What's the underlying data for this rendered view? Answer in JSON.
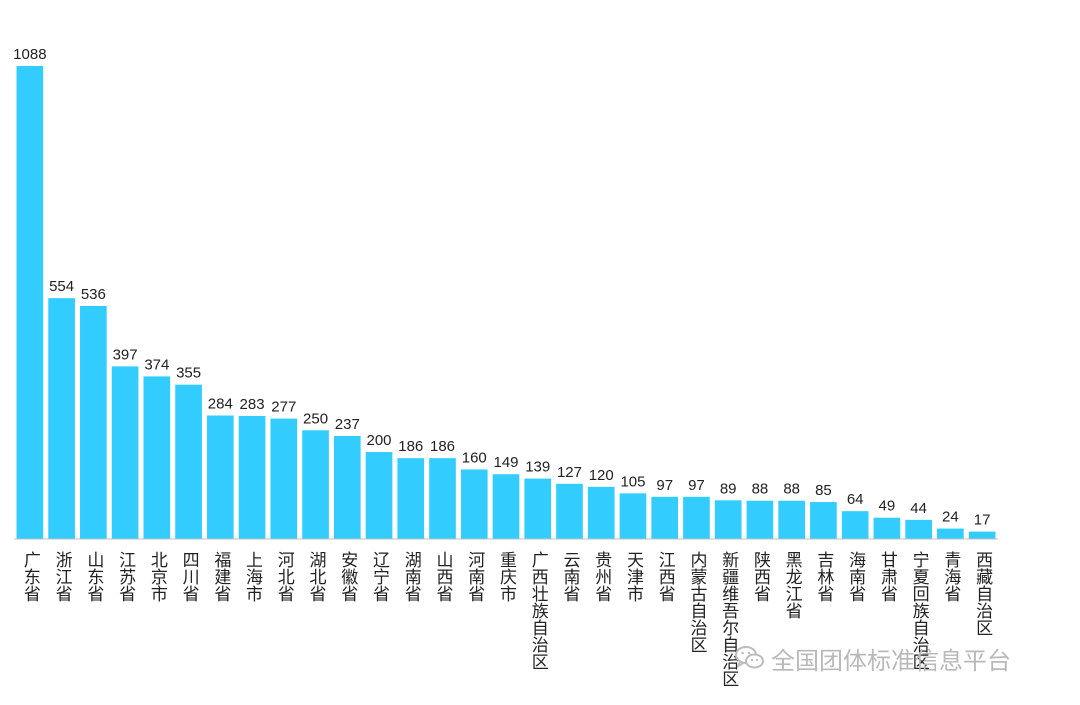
{
  "chart_data": {
    "type": "bar",
    "categories": [
      "广东省",
      "浙江省",
      "山东省",
      "江苏省",
      "北京市",
      "四川省",
      "福建省",
      "上海市",
      "河北省",
      "湖北省",
      "安徽省",
      "辽宁省",
      "湖南省",
      "山西省",
      "河南省",
      "重庆市",
      "广西壮族自治区",
      "云南省",
      "贵州省",
      "天津市",
      "江西省",
      "内蒙古自治区",
      "新疆维吾尔自治区",
      "陕西省",
      "黑龙江省",
      "吉林省",
      "海南省",
      "甘肃省",
      "宁夏回族自治区",
      "青海省",
      "西藏自治区"
    ],
    "values": [
      1088,
      554,
      536,
      397,
      374,
      355,
      284,
      283,
      277,
      250,
      237,
      200,
      186,
      186,
      160,
      149,
      139,
      127,
      120,
      105,
      97,
      97,
      89,
      88,
      88,
      85,
      64,
      49,
      44,
      24,
      17
    ],
    "bar_color": "#33ccff",
    "ylim": [
      0,
      1088
    ],
    "grid": false,
    "legend": "none"
  },
  "watermark": {
    "icon": "wechat-icon",
    "text": "全国团体标准信息平台"
  }
}
